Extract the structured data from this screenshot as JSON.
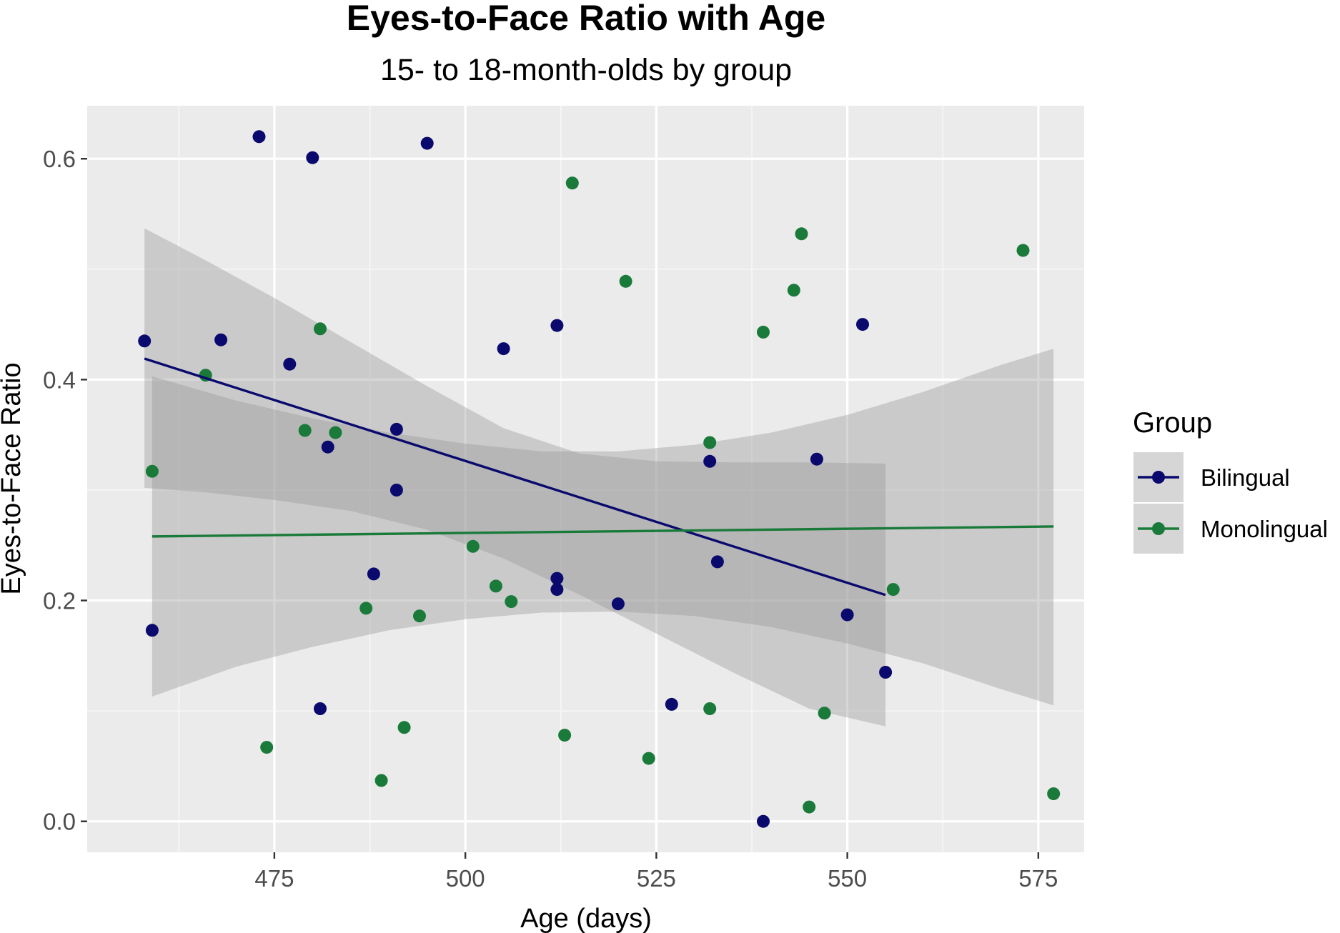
{
  "chart_data": {
    "type": "scatter",
    "title": "Eyes-to-Face Ratio with Age",
    "subtitle": "15- to 18-month-olds by group",
    "xlabel": "Age (days)",
    "ylabel": "Eyes-to-Face Ratio",
    "xlim": [
      450.5,
      581
    ],
    "ylim": [
      -0.028,
      0.648
    ],
    "x_ticks": [
      475,
      500,
      525,
      550,
      575
    ],
    "x_tick_labels": [
      "475",
      "500",
      "525",
      "550",
      "575"
    ],
    "y_ticks": [
      0.0,
      0.2,
      0.4,
      0.6
    ],
    "y_tick_labels": [
      "0.0",
      "0.2",
      "0.4",
      "0.6"
    ],
    "grid": true,
    "legend": {
      "title": "Group",
      "position": "right"
    },
    "series": [
      {
        "name": "Bilingual",
        "color": "#0a0a6e",
        "points": [
          [
            458,
            0.435
          ],
          [
            459,
            0.173
          ],
          [
            468,
            0.436
          ],
          [
            473,
            0.62
          ],
          [
            477,
            0.414
          ],
          [
            480,
            0.601
          ],
          [
            481,
            0.102
          ],
          [
            482,
            0.339
          ],
          [
            488,
            0.224
          ],
          [
            491,
            0.355
          ],
          [
            491,
            0.3
          ],
          [
            495,
            0.614
          ],
          [
            505,
            0.428
          ],
          [
            512,
            0.449
          ],
          [
            512,
            0.22
          ],
          [
            512,
            0.21
          ],
          [
            520,
            0.197
          ],
          [
            527,
            0.106
          ],
          [
            532,
            0.326
          ],
          [
            533,
            0.235
          ],
          [
            539,
            0.0
          ],
          [
            546,
            0.328
          ],
          [
            550,
            0.187
          ],
          [
            552,
            0.45
          ],
          [
            555,
            0.135
          ]
        ],
        "trend": {
          "x": [
            458,
            555
          ],
          "y": [
            0.419,
            0.205
          ]
        },
        "ribbon": {
          "x": [
            458,
            466,
            475,
            485,
            495,
            505,
            515,
            525,
            535,
            545,
            555
          ],
          "lower": [
            0.302,
            0.298,
            0.291,
            0.281,
            0.264,
            0.238,
            0.205,
            0.17,
            0.135,
            0.102,
            0.086
          ],
          "upper": [
            0.537,
            0.508,
            0.474,
            0.434,
            0.394,
            0.356,
            0.333,
            0.326,
            0.325,
            0.325,
            0.324
          ]
        }
      },
      {
        "name": "Monolingual",
        "color": "#1a7a3a",
        "points": [
          [
            459,
            0.317
          ],
          [
            466,
            0.404
          ],
          [
            474,
            0.067
          ],
          [
            479,
            0.354
          ],
          [
            481,
            0.446
          ],
          [
            483,
            0.352
          ],
          [
            487,
            0.193
          ],
          [
            489,
            0.037
          ],
          [
            492,
            0.085
          ],
          [
            494,
            0.186
          ],
          [
            501,
            0.249
          ],
          [
            504,
            0.213
          ],
          [
            506,
            0.199
          ],
          [
            513,
            0.078
          ],
          [
            514,
            0.578
          ],
          [
            521,
            0.489
          ],
          [
            524,
            0.057
          ],
          [
            532,
            0.343
          ],
          [
            532,
            0.102
          ],
          [
            539,
            0.443
          ],
          [
            543,
            0.481
          ],
          [
            544,
            0.532
          ],
          [
            545,
            0.013
          ],
          [
            547,
            0.098
          ],
          [
            556,
            0.21
          ],
          [
            573,
            0.517
          ],
          [
            577,
            0.025
          ]
        ],
        "trend": {
          "x": [
            459,
            577
          ],
          "y": [
            0.258,
            0.267
          ]
        },
        "ribbon": {
          "x": [
            459,
            470,
            480,
            490,
            500,
            510,
            520,
            530,
            540,
            550,
            560,
            570,
            577
          ],
          "lower": [
            0.113,
            0.14,
            0.158,
            0.173,
            0.183,
            0.189,
            0.19,
            0.186,
            0.176,
            0.161,
            0.143,
            0.12,
            0.105
          ],
          "upper": [
            0.403,
            0.381,
            0.365,
            0.352,
            0.342,
            0.335,
            0.335,
            0.341,
            0.352,
            0.368,
            0.389,
            0.413,
            0.428
          ]
        }
      }
    ]
  }
}
